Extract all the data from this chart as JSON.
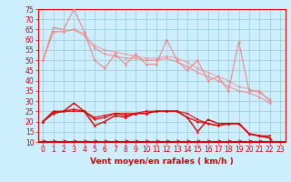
{
  "xlabel": "Vent moyen/en rafales ( km/h )",
  "xlim": [
    -0.5,
    23.5
  ],
  "ylim": [
    10,
    75
  ],
  "yticks": [
    10,
    15,
    20,
    25,
    30,
    35,
    40,
    45,
    50,
    55,
    60,
    65,
    70,
    75
  ],
  "xticks": [
    0,
    1,
    2,
    3,
    4,
    5,
    6,
    7,
    8,
    9,
    10,
    11,
    12,
    13,
    14,
    15,
    16,
    17,
    18,
    19,
    20,
    21,
    22,
    23
  ],
  "bg_color": "#cceeff",
  "grid_color": "#99cccc",
  "light_pink": "#f08888",
  "dark_red": "#dd0000",
  "line1_light": [
    50,
    66,
    65,
    75,
    64,
    50,
    46,
    53,
    48,
    53,
    48,
    48,
    60,
    50,
    45,
    50,
    40,
    42,
    35,
    59,
    35,
    35,
    30
  ],
  "line2_light": [
    50,
    64,
    64,
    65,
    62,
    56,
    53,
    52,
    51,
    51,
    50,
    50,
    51,
    49,
    47,
    44,
    42,
    40,
    37,
    35,
    34,
    32,
    29
  ],
  "line3_light": [
    50,
    64,
    64,
    65,
    63,
    57,
    55,
    54,
    53,
    52,
    51,
    51,
    52,
    51,
    49,
    46,
    44,
    42,
    40,
    37,
    36,
    34,
    31
  ],
  "line1_dark": [
    20,
    25,
    25,
    29,
    25,
    18,
    20,
    23,
    22,
    24,
    24,
    25,
    25,
    25,
    22,
    15,
    21,
    19,
    19,
    19,
    14,
    13,
    12
  ],
  "line2_dark": [
    20,
    24,
    25,
    26,
    25,
    21,
    22,
    24,
    23,
    24,
    24,
    25,
    25,
    25,
    22,
    20,
    19,
    18,
    19,
    19,
    14,
    13,
    12
  ],
  "line3_dark": [
    20,
    24,
    25,
    25,
    25,
    22,
    23,
    24,
    24,
    24,
    25,
    25,
    25,
    25,
    24,
    21,
    19,
    18,
    19,
    19,
    14,
    13,
    13
  ],
  "arrow_color": "#dd0000",
  "tick_fontsize": 5.5,
  "xlabel_fontsize": 6.5
}
